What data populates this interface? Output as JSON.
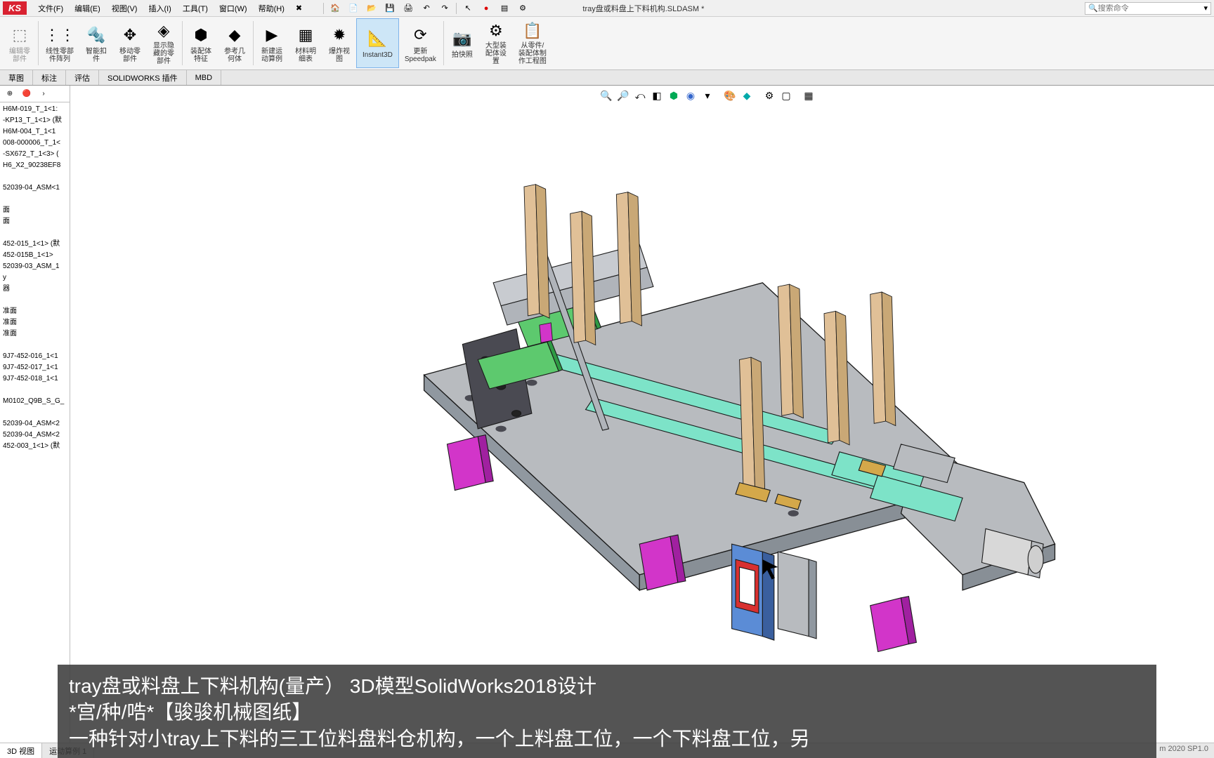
{
  "app": {
    "logo_text": "KS",
    "doc_title": "tray盘或料盘上下料机构.SLDASM *",
    "search_placeholder": "搜索命令"
  },
  "menu": {
    "file": "文件(F)",
    "edit": "编辑(E)",
    "view": "视图(V)",
    "insert": "插入(I)",
    "tools": "工具(T)",
    "window": "窗口(W)",
    "help": "帮助(H)"
  },
  "ribbon": {
    "edit_component": "编辑零\n部件",
    "linear_pattern": "线性零部\n件阵列",
    "smart_fastener": "智能扣\n件",
    "move_component": "移动零\n部件",
    "show_hidden": "显示隐\n藏的零\n部件",
    "assembly_feature": "装配体\n特征",
    "ref_geometry": "参考几\n何体",
    "new_motion": "新建运\n动算例",
    "bom": "材料明\n细表",
    "exploded_view": "爆炸视\n图",
    "instant3d": "Instant3D",
    "speedpak": "更新\nSpeedpak",
    "snapshot": "拍快照",
    "large_asm": "大型装\n配体设\n置",
    "make_drawing": "从零件/\n装配体制\n作工程图"
  },
  "tabs": {
    "sketch": "草图",
    "annotate": "标注",
    "evaluate": "评估",
    "sw_addins": "SOLIDWORKS 插件",
    "mbd": "MBD"
  },
  "tree": {
    "items": [
      "H6M-019_T_1<1:",
      "-KP13_T_1<1> (默",
      "H6M-004_T_1<1",
      "008-000006_T_1<",
      "-SX672_T_1<3> (",
      "H6_X2_90238EF8",
      "",
      "52039-04_ASM<1",
      "",
      "面",
      "面",
      "",
      "452-015_1<1> (默",
      "452-015B_1<1>",
      "52039-03_ASM_1",
      "y",
      "器",
      "",
      "准面",
      "准面",
      "准面",
      "",
      "9J7-452-016_1<1",
      "9J7-452-017_1<1",
      "9J7-452-018_1<1",
      "",
      "M0102_Q9B_S_G_",
      "",
      "52039-04_ASM<2",
      "52039-04_ASM<2",
      "452-003_1<1> (默"
    ]
  },
  "bottom": {
    "view3d": "3D 视图",
    "motion": "运动算例 1",
    "status": "m 2020 SP1.0"
  },
  "caption": {
    "line1": "tray盘或料盘上下料机构(量产）  3D模型SolidWorks2018设计",
    "line2": "*宫/种/哠*【骏骏机械图纸】",
    "line3": "一种针对小tray上下料的三工位料盘料仓机构，一个上料盘工位，一个下料盘工位，另"
  },
  "colors": {
    "plate": "#b8bbbf",
    "plate_shade": "#9098a0",
    "green": "#5dc96e",
    "green_dark": "#2e9a44",
    "teal": "#7de3c8",
    "magenta": "#d235c9",
    "wood": "#e0c097",
    "wood_shade": "#c9a876",
    "red": "#d83030",
    "blue": "#5b8cd6",
    "blue_dark": "#3a5f9e",
    "gold": "#d4a84a",
    "dark": "#4a4a52",
    "outline": "#1a1a1a"
  }
}
